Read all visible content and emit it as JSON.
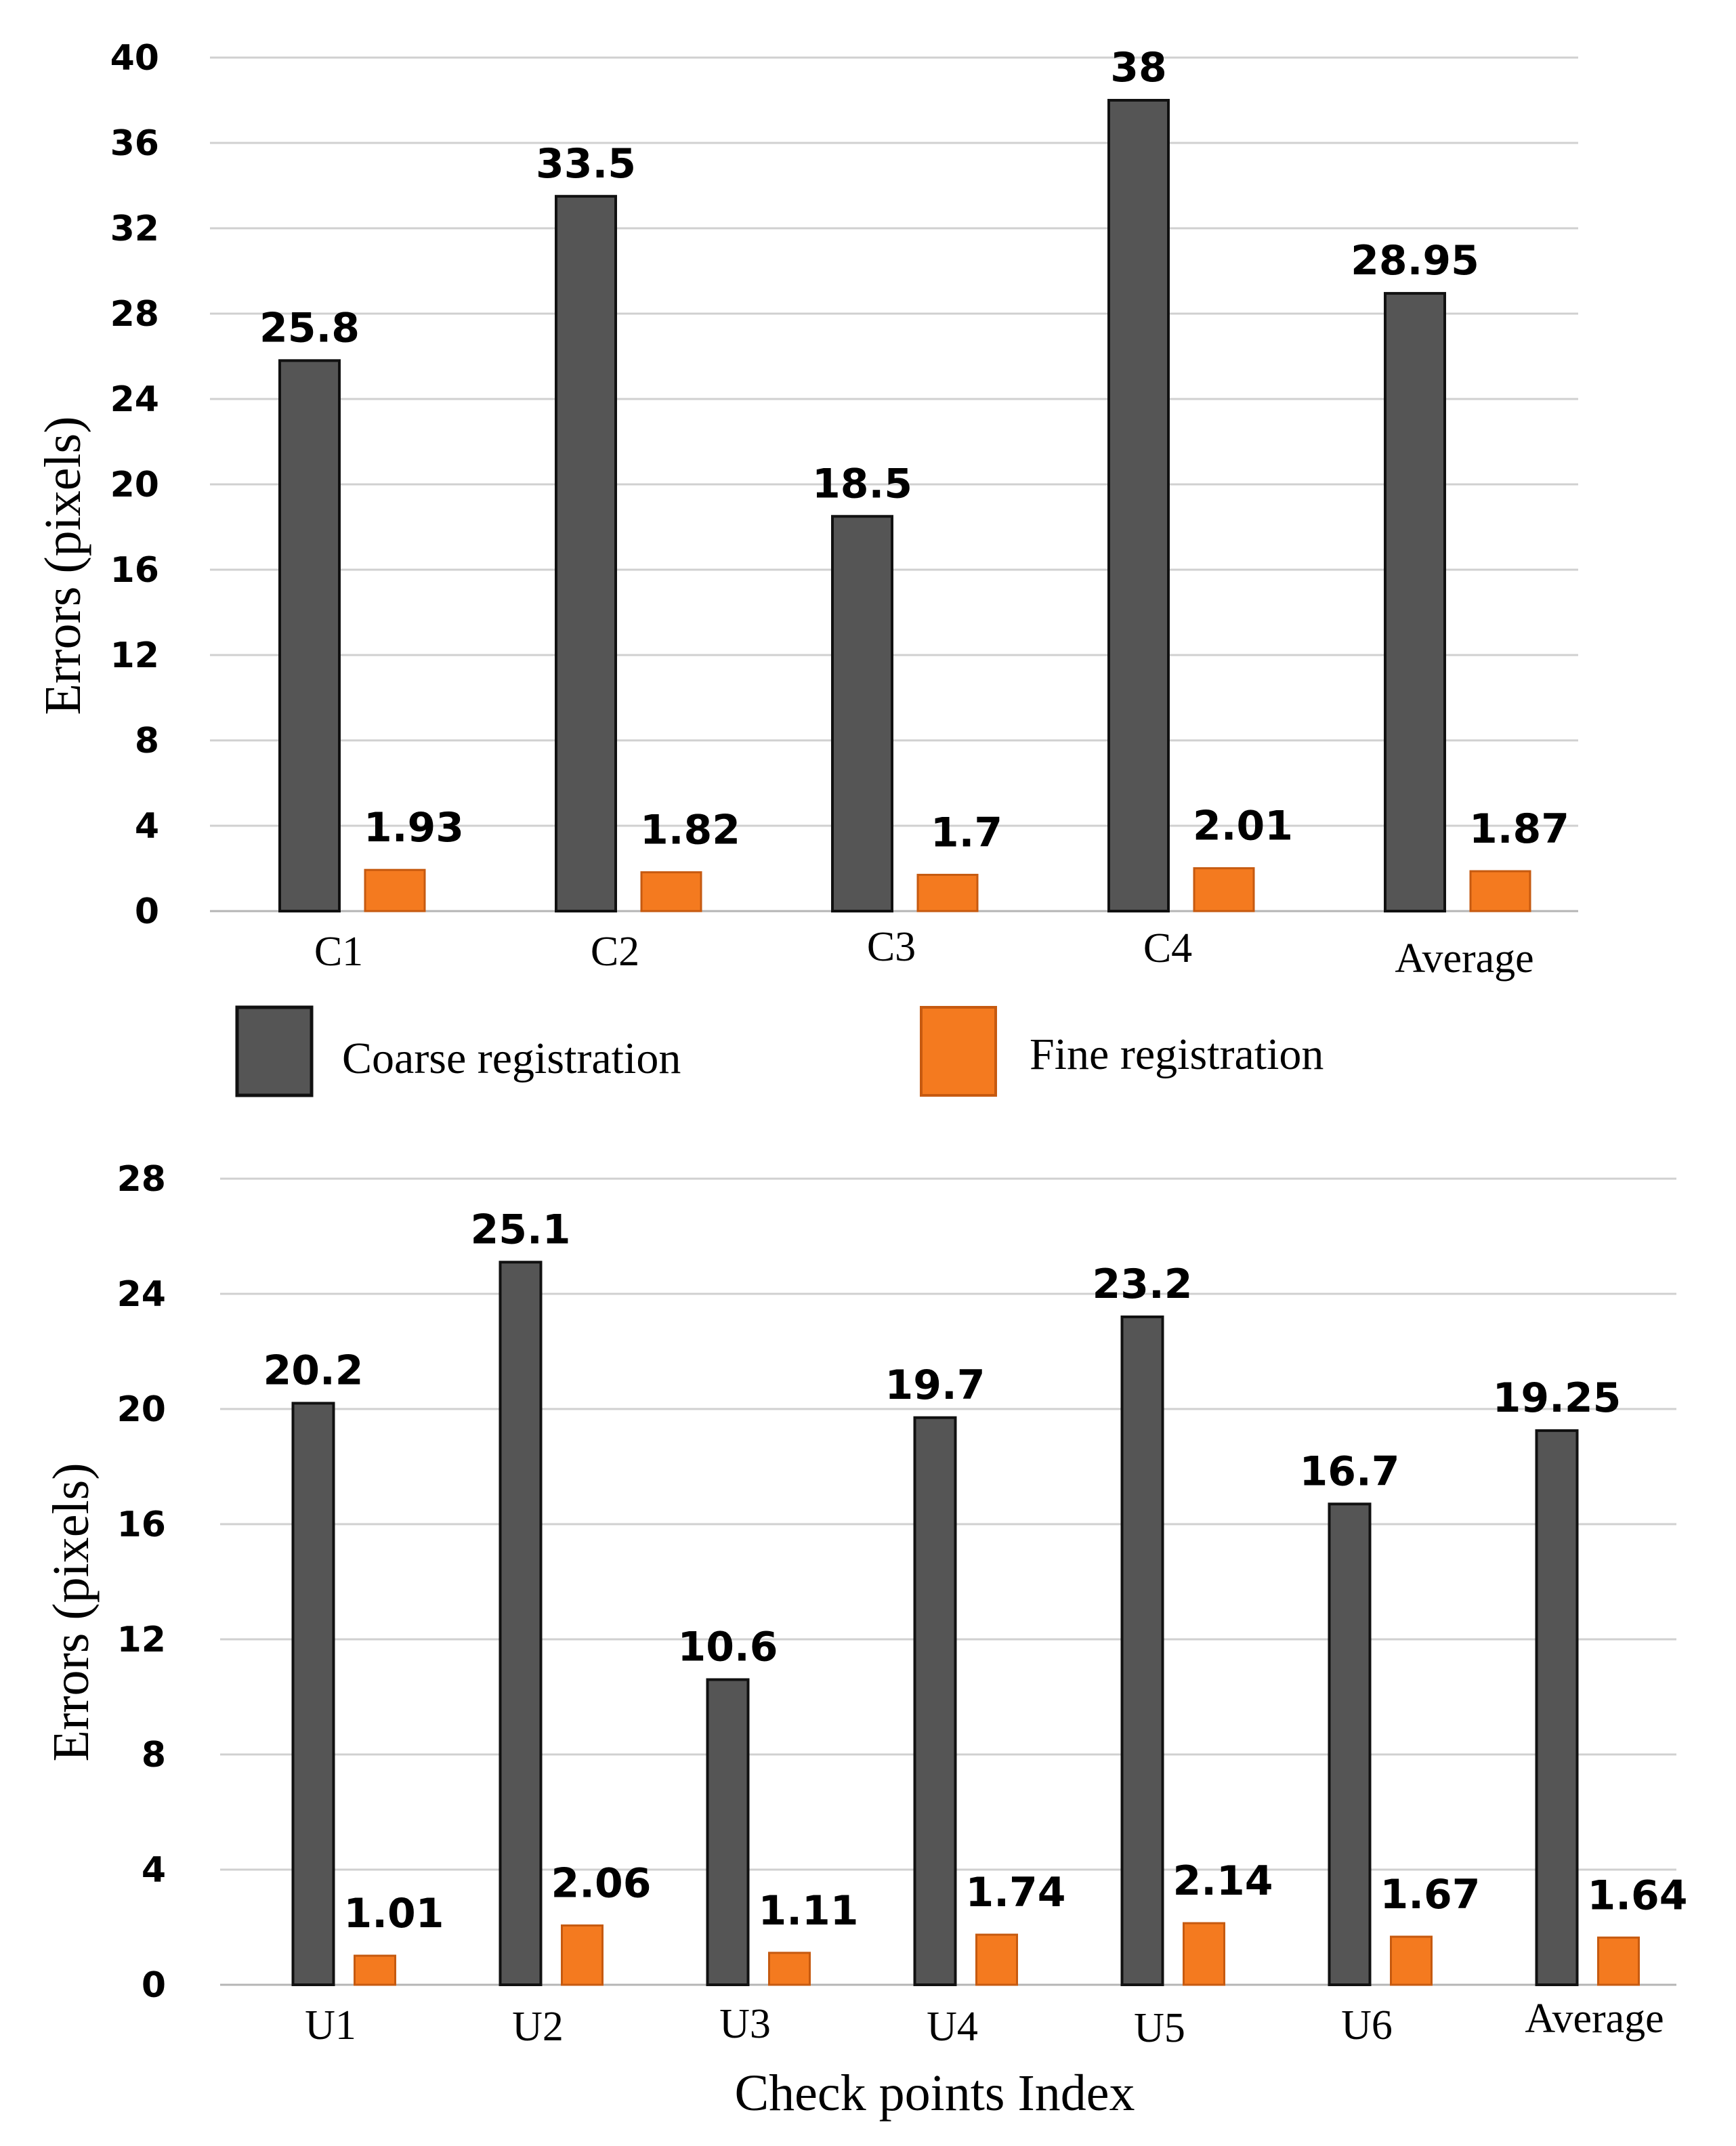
{
  "colors": {
    "coarse": "#555555",
    "coarse_stroke": "#111111",
    "fine": "#f47a1f",
    "fine_stroke": "#c65a10"
  },
  "legend": {
    "coarse_label": "Coarse registration",
    "fine_label": "Fine registration"
  },
  "chart_data": [
    {
      "type": "bar",
      "title": "",
      "xlabel": "",
      "ylabel": "Errors (pixels)",
      "ylim": [
        0,
        40
      ],
      "yticks": [
        0,
        4,
        8,
        12,
        16,
        20,
        24,
        28,
        32,
        36,
        40
      ],
      "categories": [
        "C1",
        "C2",
        "C3",
        "C4",
        "Average"
      ],
      "series": [
        {
          "name": "Coarse registration",
          "values": [
            25.8,
            33.5,
            18.5,
            38,
            28.95
          ],
          "labels": [
            "25.8",
            "33.5",
            "18.5",
            "38",
            "28.95"
          ]
        },
        {
          "name": "Fine registration",
          "values": [
            1.93,
            1.82,
            1.7,
            2.01,
            1.87
          ],
          "labels": [
            "1.93",
            "1.82",
            "1.7",
            "2.01",
            "1.87"
          ]
        }
      ]
    },
    {
      "type": "bar",
      "title": "",
      "xlabel": "Check points Index",
      "ylabel": "Errors (pixels)",
      "ylim": [
        0,
        28
      ],
      "yticks": [
        0,
        4,
        8,
        12,
        16,
        20,
        24,
        28
      ],
      "categories": [
        "U1",
        "U2",
        "U3",
        "U4",
        "U5",
        "U6",
        "Average"
      ],
      "series": [
        {
          "name": "Coarse registration",
          "values": [
            20.2,
            25.1,
            10.6,
            19.7,
            23.2,
            16.7,
            19.25
          ],
          "labels": [
            "20.2",
            "25.1",
            "10.6",
            "19.7",
            "23.2",
            "16.7",
            "19.25"
          ]
        },
        {
          "name": "Fine registration",
          "values": [
            1.01,
            2.06,
            1.11,
            1.74,
            2.14,
            1.67,
            1.64
          ],
          "labels": [
            "1.01",
            "2.06",
            "1.11",
            "1.74",
            "2.14",
            "1.67",
            "1.64"
          ]
        }
      ]
    }
  ]
}
